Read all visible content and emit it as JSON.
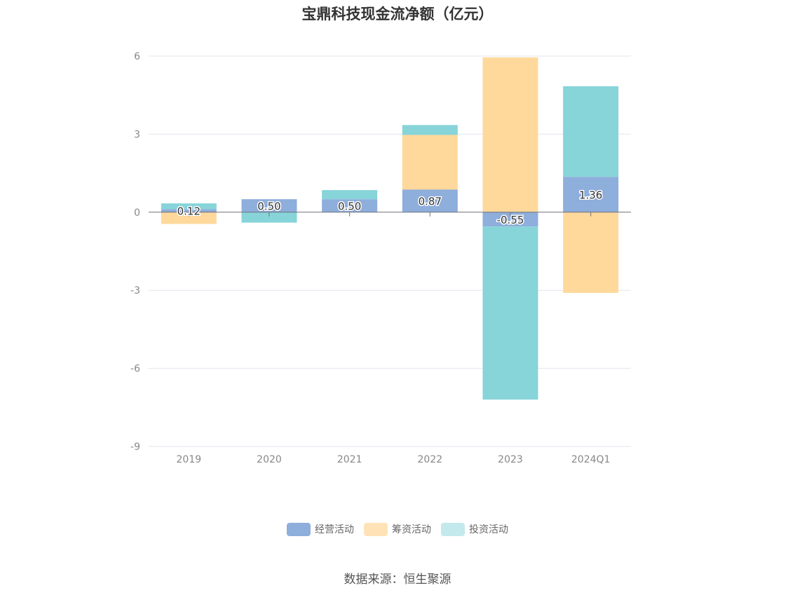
{
  "chart_data": {
    "type": "bar",
    "stacked": true,
    "title": "宝鼎科技现金流净额（亿元）",
    "categories": [
      "2019",
      "2020",
      "2021",
      "2022",
      "2023",
      "2024Q1"
    ],
    "series": [
      {
        "name": "经营活动",
        "color": "#8eaedc",
        "values": [
          0.12,
          0.5,
          0.5,
          0.87,
          -0.55,
          1.36
        ]
      },
      {
        "name": "筹资活动",
        "color": "#ffd99b",
        "values": [
          -0.45,
          0.0,
          0.0,
          2.1,
          5.95,
          -3.1
        ]
      },
      {
        "name": "投资活动",
        "color": "#87d4d9",
        "values": [
          0.22,
          -0.4,
          0.35,
          0.38,
          -6.65,
          3.48
        ]
      }
    ],
    "data_labels": [
      "0.12",
      "0.50",
      "0.50",
      "0.87",
      "-0.55",
      "1.36"
    ],
    "y_ticks": [
      "6",
      "3",
      "0",
      "-3",
      "-6",
      "-9"
    ],
    "ylim": [
      -9,
      6
    ],
    "grid": true,
    "legend_position": "bottom",
    "legend_colors": [
      "#8eaedc",
      "#ffe3b7",
      "#c3e9ec"
    ]
  },
  "source_text": "数据来源：恒生聚源"
}
